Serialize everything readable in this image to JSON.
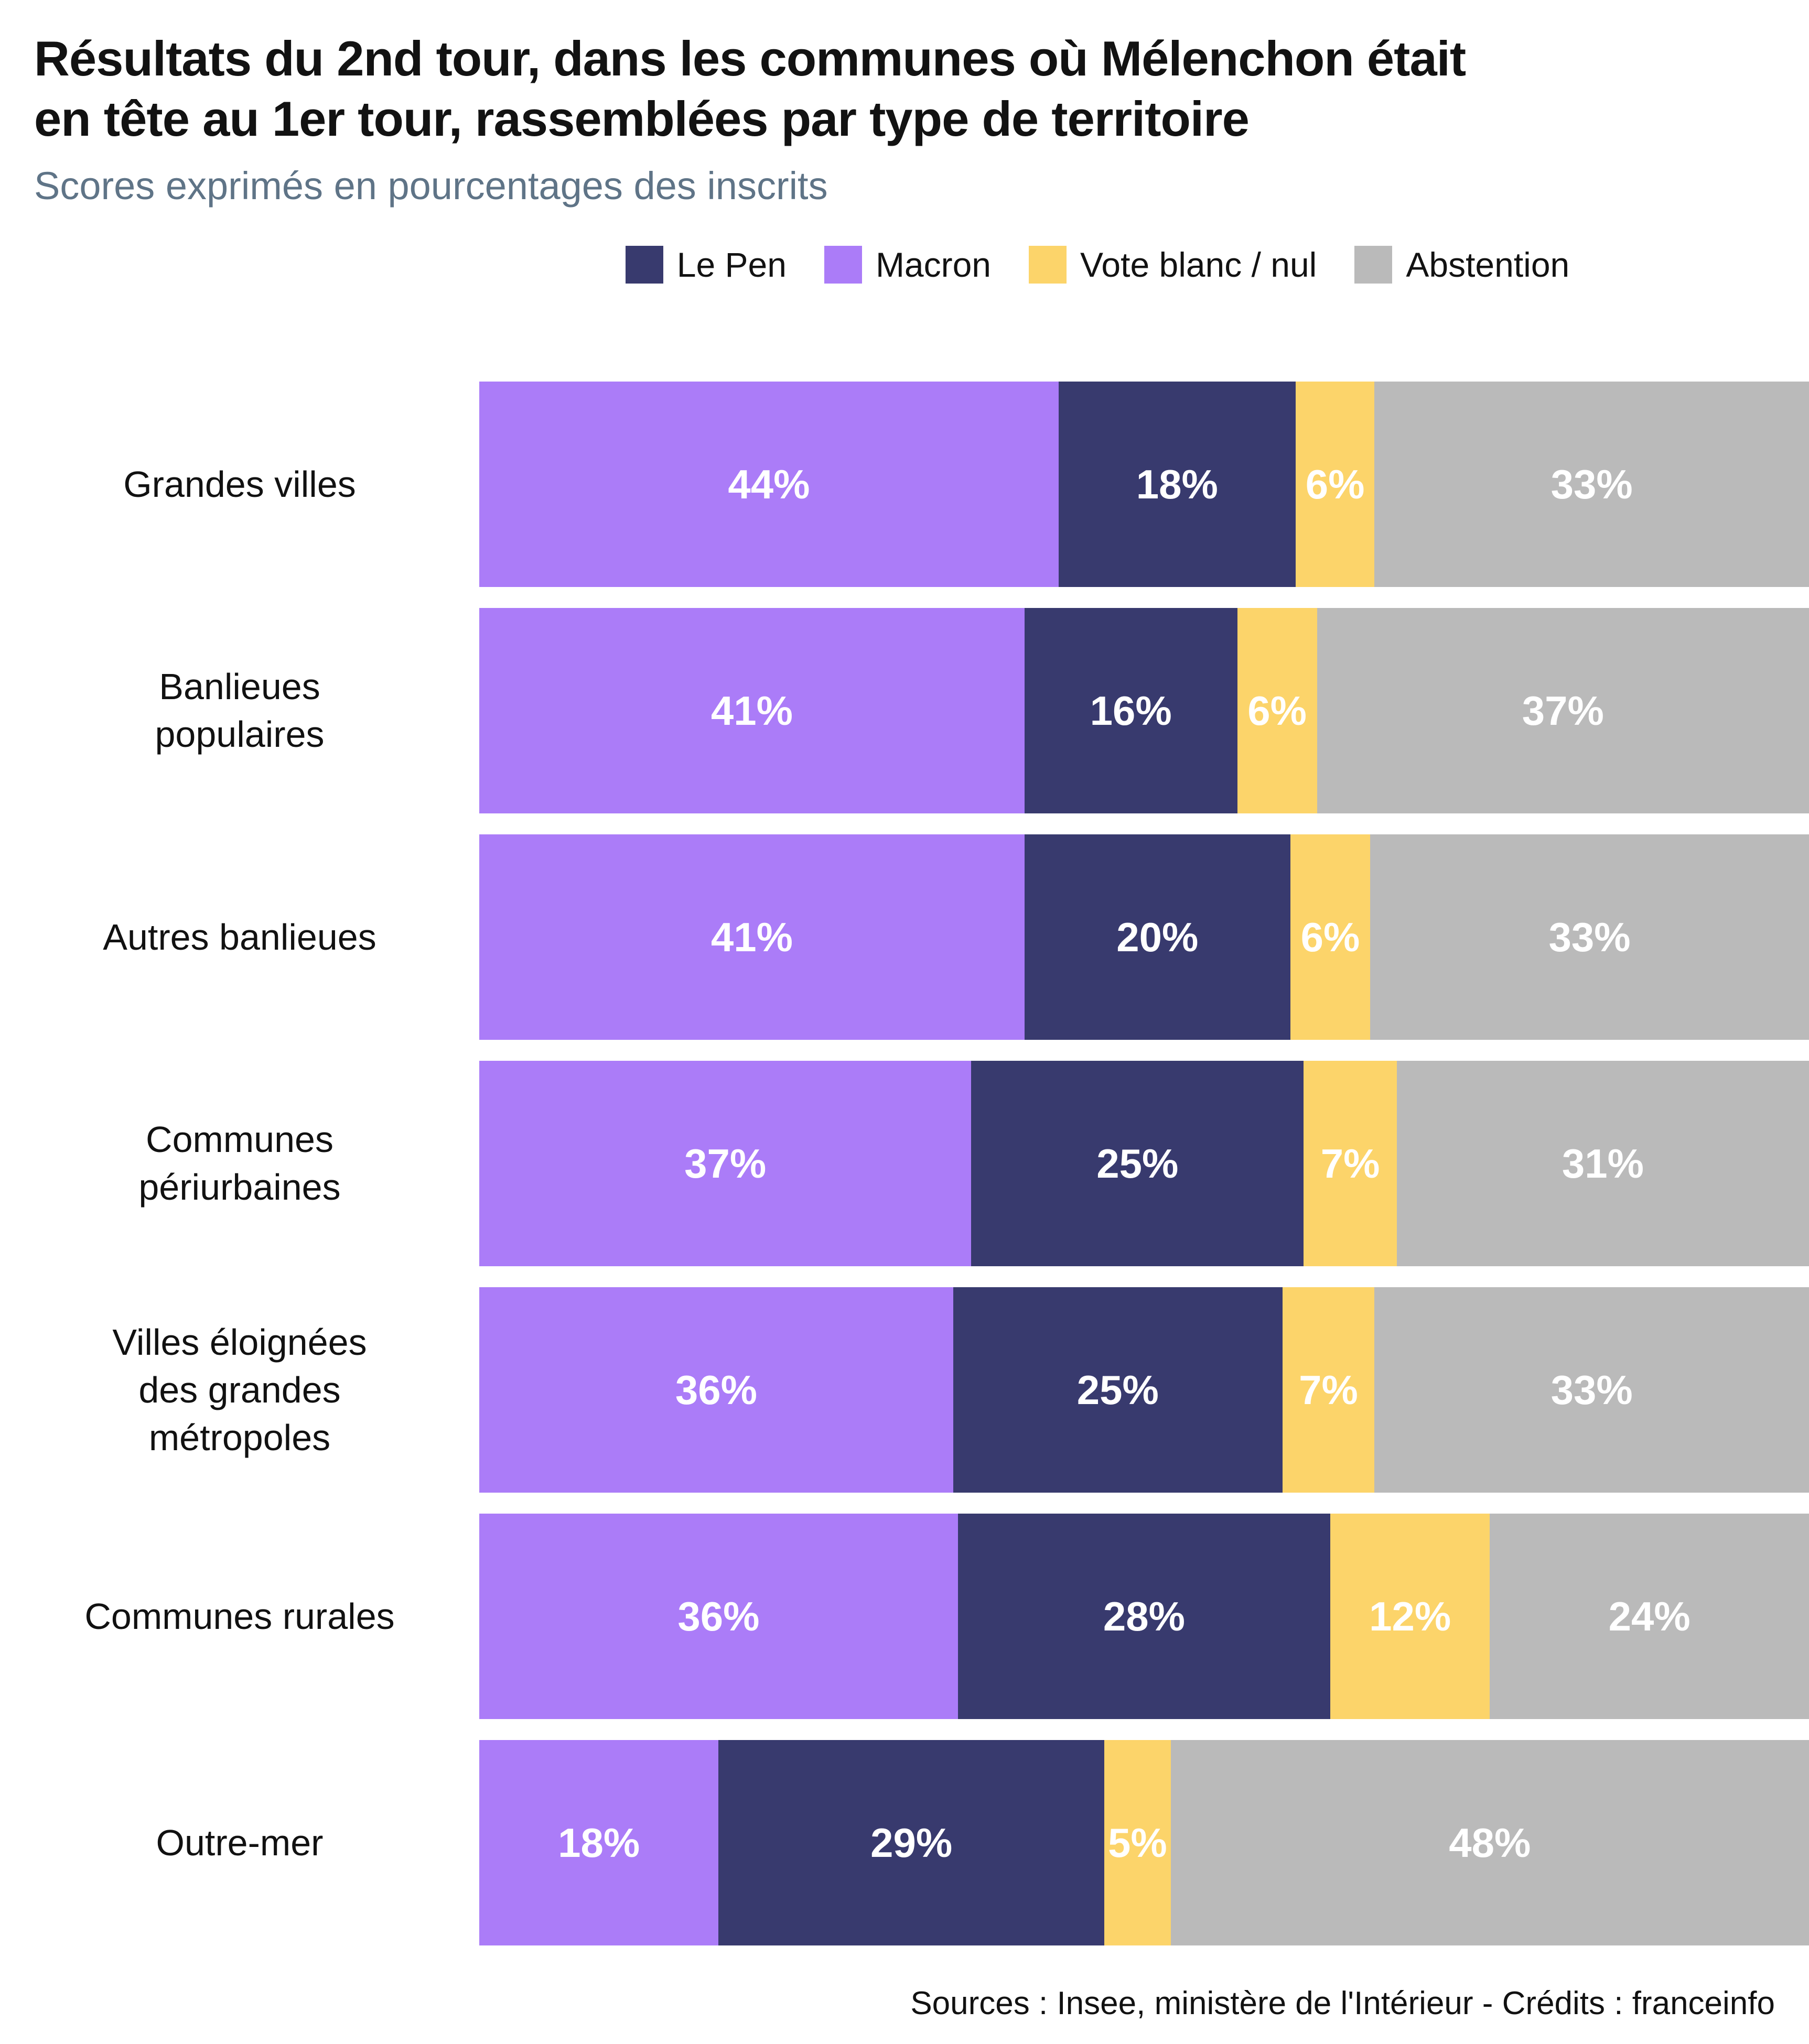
{
  "footer": {
    "text": "Sources : Insee, ministère de l'Intérieur - Crédits : franceinfo"
  },
  "chart_data": {
    "type": "bar",
    "orientation": "horizontal",
    "stacked": true,
    "title": "Résultats du 2nd tour, dans les communes où Mélenchon était en tête au 1er tour, rassemblées par type de territoire",
    "title_lines": [
      "Résultats du 2nd tour, dans les communes où Mélenchon était",
      "en tête au 1er tour, rassemblées par type de territoire"
    ],
    "subtitle": "Scores exprimés en pourcentages des inscrits",
    "value_suffix": "%",
    "categories": [
      "Grandes villes",
      "Banlieues populaires",
      "Autres banlieues",
      "Communes périurbaines",
      "Villes éloignées des grandes métropoles",
      "Communes rurales",
      "Outre-mer"
    ],
    "category_lines": [
      [
        "Grandes villes"
      ],
      [
        "Banlieues",
        "populaires"
      ],
      [
        "Autres banlieues"
      ],
      [
        "Communes",
        "périurbaines"
      ],
      [
        "Villes éloignées",
        "des grandes",
        "métropoles"
      ],
      [
        "Communes rurales"
      ],
      [
        "Outre-mer"
      ]
    ],
    "series": [
      {
        "name": "Macron",
        "color": "#AB7CF8",
        "values": [
          44,
          41,
          41,
          37,
          36,
          36,
          18
        ]
      },
      {
        "name": "Le Pen",
        "color": "#383A6E",
        "values": [
          18,
          16,
          20,
          25,
          25,
          28,
          29
        ]
      },
      {
        "name": "Vote blanc / nul",
        "color": "#FCD46A",
        "values": [
          6,
          6,
          6,
          7,
          7,
          12,
          5
        ]
      },
      {
        "name": "Abstention",
        "color": "#BABABA",
        "values": [
          33,
          37,
          33,
          31,
          33,
          24,
          48
        ]
      }
    ],
    "legend_order": [
      "Le Pen",
      "Macron",
      "Vote blanc / nul",
      "Abstention"
    ],
    "colors": {
      "title": "#121212",
      "subtitle": "#5F7487",
      "value_label": "#FFFFFF"
    }
  }
}
